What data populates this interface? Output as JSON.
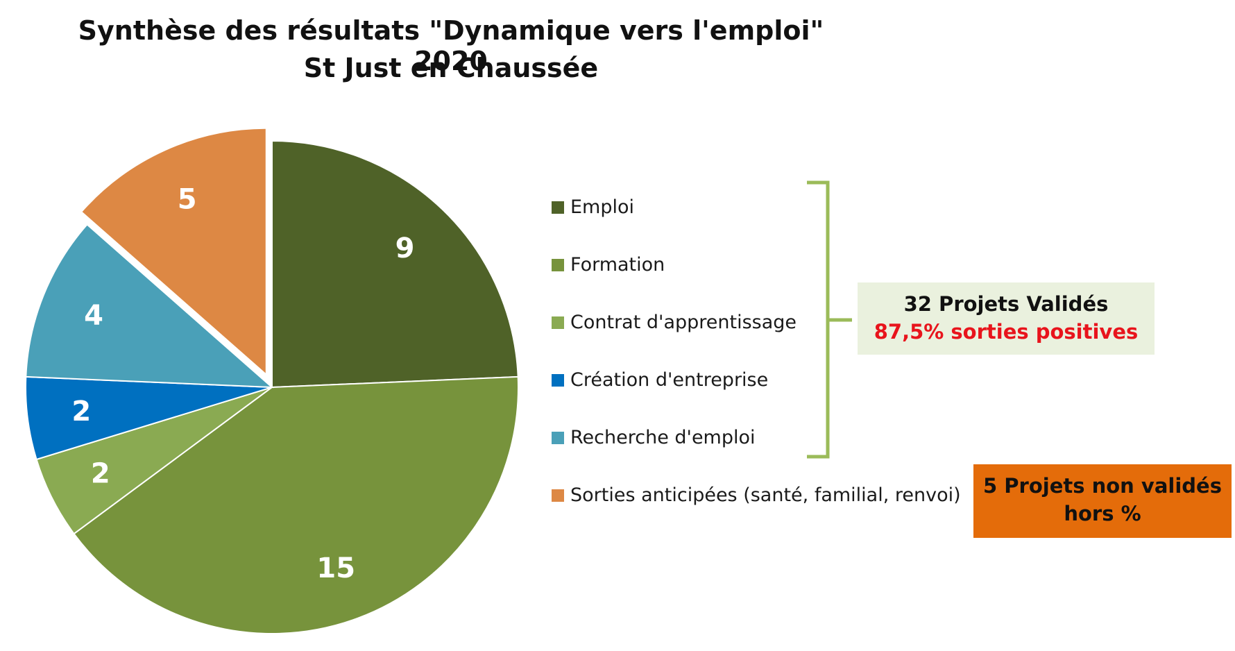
{
  "chart_data": {
    "type": "pie",
    "title": "Synthèse des résultats \"Dynamique vers l'emploi\" 2020",
    "subtitle": "St Just en Chaussée",
    "categories": [
      "Emploi",
      "Formation",
      "Contrat d'apprentissage",
      "Création d'entreprise",
      "Recherche d'emploi",
      "Sorties anticipées (santé, familial, renvoi)"
    ],
    "values": [
      9,
      15,
      2,
      2,
      4,
      5
    ],
    "colors": [
      "#4f6228",
      "#77933c",
      "#8aaa52",
      "#0070c0",
      "#4aa0b8",
      "#dd8844"
    ],
    "exploded": [
      false,
      false,
      false,
      false,
      false,
      true
    ],
    "legend_position": "right",
    "annotations": {
      "valid_box": {
        "line1": "32 Projets Validés",
        "line2": "87,5%  sorties positives",
        "background": "#eaf1de",
        "highlight_color": "#e8141c"
      },
      "invalid_box": {
        "line1": "5 Projets  non validés",
        "line2": "hors %",
        "background": "#e46c0a"
      },
      "bracket_color": "#9bbb59"
    }
  }
}
